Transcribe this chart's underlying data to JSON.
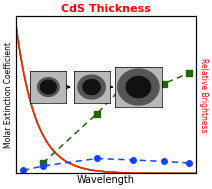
{
  "title": "CdS Thickness",
  "title_color": "#ff0000",
  "xlabel": "Wavelength",
  "ylabel": "Molar Extinction Coefficient",
  "ylabel_right": "Relative Brightness",
  "ylabel_right_color": "#ff0000",
  "bg_color": "#ffffff",
  "axes_bg": "#ffffff",
  "extinction_lines": [
    {
      "color": "#7700cc",
      "shift": 0.0
    },
    {
      "color": "#0044ff",
      "shift": 0.07
    },
    {
      "color": "#0099ff",
      "shift": 0.13
    },
    {
      "color": "#00bb00",
      "shift": 0.19
    },
    {
      "color": "#ffcc00",
      "shift": 0.25
    },
    {
      "color": "#ff6600",
      "shift": 0.31
    },
    {
      "color": "#ff1100",
      "shift": 0.37
    }
  ],
  "brightness_points_x": [
    0.15,
    0.45,
    0.65,
    0.82,
    0.96
  ],
  "brightness_points_y": [
    0.07,
    0.4,
    0.65,
    0.6,
    0.67
  ],
  "mec_points_x": [
    0.04,
    0.15,
    0.45,
    0.65,
    0.82,
    0.96
  ],
  "mec_points_y": [
    0.02,
    0.05,
    0.1,
    0.09,
    0.08,
    0.07
  ],
  "dot_color": "#1144ff",
  "square_color": "#226600"
}
